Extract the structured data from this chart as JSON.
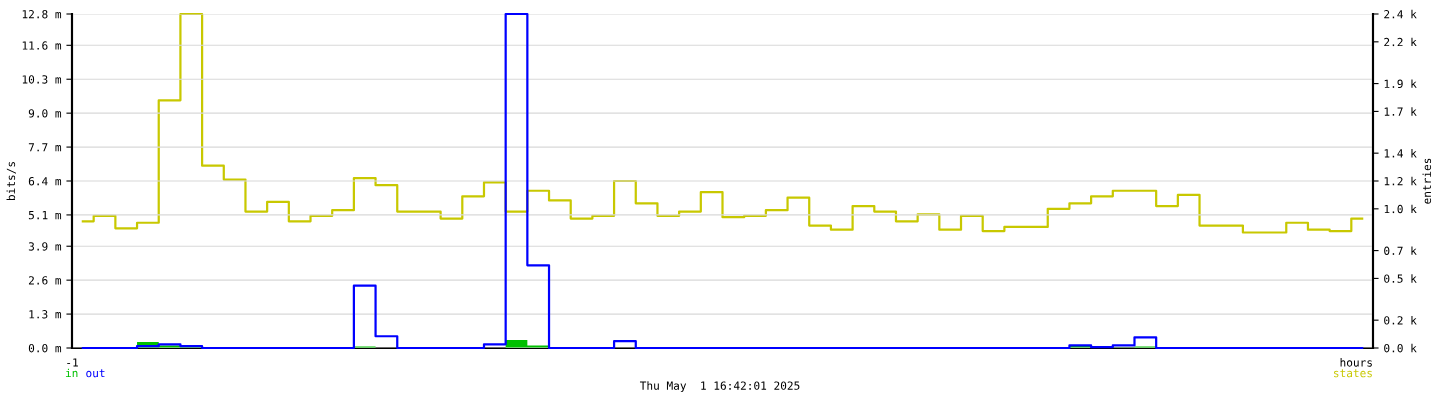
{
  "chart_data": {
    "type": "step",
    "ylabel": "bits/s",
    "y2label": "entries",
    "xlabel": "hours",
    "categories": [
      null,
      null,
      null,
      null,
      null,
      null,
      null,
      null,
      null,
      null,
      null,
      null,
      null,
      null,
      null,
      null,
      null,
      null,
      null,
      null,
      null,
      null,
      null,
      null,
      null,
      null,
      null,
      null,
      null,
      null,
      null,
      null,
      null,
      null,
      null,
      null,
      null,
      null,
      null,
      null,
      null,
      null,
      null,
      null,
      null,
      null,
      null,
      null,
      null,
      null,
      null,
      null,
      null,
      null,
      null,
      null,
      null,
      null,
      null,
      null
    ],
    "series": [
      {
        "name": "in",
        "type": "area",
        "color": "#00c000",
        "values": [
          0,
          0,
          0,
          0.23,
          0.1,
          0.1,
          0,
          0,
          0,
          0,
          0,
          0,
          0,
          0.06,
          0,
          0,
          0,
          0,
          0,
          0,
          0.31,
          0.1,
          0,
          0,
          0,
          0,
          0,
          0,
          0,
          0,
          0,
          0,
          0,
          0,
          0,
          0,
          0,
          0,
          0,
          0,
          0,
          0,
          0,
          0,
          0,
          0,
          0.1,
          0.06,
          0.02,
          0.06,
          0,
          0,
          0,
          0,
          0,
          0,
          0,
          0,
          0,
          0
        ]
      },
      {
        "name": "out",
        "color": "#0000ff",
        "values": [
          0,
          0,
          0,
          0.07,
          0.14,
          0.07,
          0,
          0,
          0,
          0,
          0,
          0,
          0,
          2.39,
          0.45,
          0,
          0,
          0,
          0,
          0.14,
          12.8,
          3.17,
          0,
          0,
          0,
          0.26,
          0,
          0,
          0,
          0,
          0,
          0,
          0,
          0,
          0,
          0,
          0,
          0,
          0,
          0,
          0,
          0,
          0,
          0,
          0,
          0,
          0.1,
          0.03,
          0.1,
          0.41,
          0,
          0,
          0,
          0,
          0,
          0,
          0,
          0,
          0,
          0
        ]
      },
      {
        "name": "states",
        "axis": "y2",
        "color": "#c8c800",
        "values": [
          0.91,
          0.95,
          0.86,
          0.9,
          1.78,
          2.4,
          1.31,
          1.21,
          0.98,
          1.05,
          0.91,
          0.95,
          0.99,
          1.22,
          1.17,
          0.98,
          0.98,
          0.93,
          1.09,
          1.19,
          0.98,
          1.13,
          1.06,
          0.93,
          0.95,
          1.2,
          1.04,
          0.95,
          0.98,
          1.12,
          0.94,
          0.95,
          0.99,
          1.08,
          0.88,
          0.85,
          1.02,
          0.98,
          0.91,
          0.96,
          0.85,
          0.95,
          0.84,
          0.87,
          0.87,
          1.0,
          1.04,
          1.09,
          1.13,
          1.13,
          1.02,
          1.1,
          0.88,
          0.88,
          0.83,
          0.83,
          0.9,
          0.85,
          0.84,
          0.93
        ]
      }
    ],
    "ylim": [
      0,
      12.8
    ],
    "yticks": [
      {
        "value": 0,
        "label": "0.0 m"
      },
      {
        "value": 1.3,
        "label": "1.3 m"
      },
      {
        "value": 2.6,
        "label": "2.6 m"
      },
      {
        "value": 3.9,
        "label": "3.9 m"
      },
      {
        "value": 5.1,
        "label": "5.1 m"
      },
      {
        "value": 6.4,
        "label": "6.4 m"
      },
      {
        "value": 7.7,
        "label": "7.7 m"
      },
      {
        "value": 9.0,
        "label": "9.0 m"
      },
      {
        "value": 10.3,
        "label": "10.3 m"
      },
      {
        "value": 11.6,
        "label": "11.6 m"
      },
      {
        "value": 12.8,
        "label": "12.8 m"
      }
    ],
    "y2lim": [
      0,
      2.4
    ],
    "y2ticks": [
      {
        "value": 0,
        "label": "0.0 k"
      },
      {
        "value": 0.2,
        "label": "0.2 k"
      },
      {
        "value": 0.5,
        "label": "0.5 k"
      },
      {
        "value": 0.7,
        "label": "0.7 k"
      },
      {
        "value": 1.0,
        "label": "1.0 k"
      },
      {
        "value": 1.2,
        "label": "1.2 k"
      },
      {
        "value": 1.4,
        "label": "1.4 k"
      },
      {
        "value": 1.7,
        "label": "1.7 k"
      },
      {
        "value": 1.9,
        "label": "1.9 k"
      },
      {
        "value": 2.2,
        "label": "2.2 k"
      },
      {
        "value": 2.4,
        "label": "2.4 k"
      }
    ],
    "grid": "y",
    "legend": "bottom",
    "annotations": [
      "-1",
      "Thu May  1 16:42:01 2025"
    ]
  }
}
